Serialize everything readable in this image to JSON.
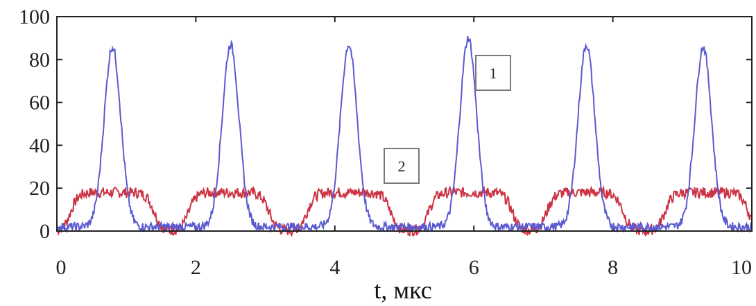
{
  "chart_data": {
    "type": "line",
    "title": "",
    "xlabel": "t, мкс",
    "ylabel": "",
    "xlim": [
      0,
      10
    ],
    "ylim": [
      0,
      100
    ],
    "x_ticks": [
      "0",
      "2",
      "4",
      "6",
      "8",
      "10"
    ],
    "y_ticks": [
      "0",
      "20",
      "40",
      "60",
      "80",
      "100"
    ],
    "grid": false,
    "annotations": [
      "1",
      "2"
    ],
    "series": [
      {
        "name": "1",
        "color": "#5a5ad2",
        "peak_times": [
          0.8,
          2.5,
          4.2,
          5.92,
          7.62,
          9.3
        ],
        "peak_values": [
          86,
          87,
          87,
          90,
          87,
          86
        ],
        "baseline": 2,
        "peak_width": 0.12
      },
      {
        "name": "2",
        "color": "#cc3344",
        "pulse_starts": [
          0.2,
          1.9,
          3.6,
          5.35,
          7.05,
          8.75
        ],
        "pulse_ends": [
          1.4,
          3.05,
          4.8,
          6.55,
          8.15,
          9.95
        ],
        "pulse_level": 18,
        "baseline": 0
      }
    ]
  }
}
